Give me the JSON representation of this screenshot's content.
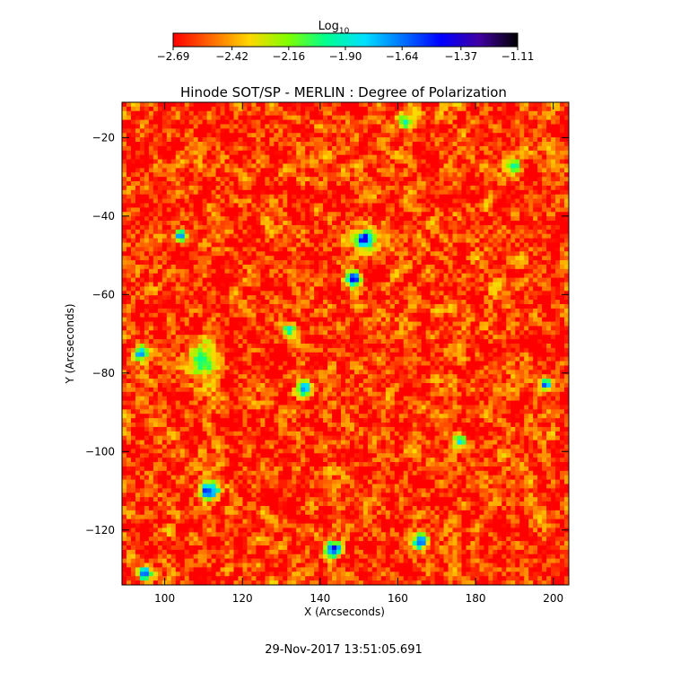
{
  "chart_data": {
    "type": "heatmap",
    "title": "Hinode SOT/SP - MERLIN : Degree of Polarization",
    "xlabel": "X (Arcseconds)",
    "ylabel": "Y (Arcseconds)",
    "xlim": [
      89,
      204
    ],
    "ylim": [
      -134,
      -11
    ],
    "xticks": [
      100,
      120,
      140,
      160,
      180,
      200
    ],
    "yticks": [
      -20,
      -40,
      -60,
      -80,
      -100,
      -120
    ],
    "xtick_labels": [
      "100",
      "120",
      "140",
      "160",
      "180",
      "200"
    ],
    "ytick_labels": [
      "−20",
      "−40",
      "−60",
      "−80",
      "−100",
      "−120"
    ],
    "colorbar": {
      "label": "Log",
      "label_sub": "10",
      "range": [
        -2.69,
        -1.11
      ],
      "tick_values": [
        -2.69,
        -2.42,
        -2.16,
        -1.9,
        -1.64,
        -1.37,
        -1.11
      ],
      "tick_labels": [
        "−2.69",
        "−2.42",
        "−2.16",
        "−1.90",
        "−1.64",
        "−1.37",
        "−1.11"
      ],
      "colormap": [
        "#ff0000",
        "#ff6a00",
        "#ffd800",
        "#80ff00",
        "#00ff90",
        "#00e0ff",
        "#0070ff",
        "#0000ff",
        "#4000a0",
        "#000000"
      ]
    },
    "background_level": -2.6,
    "features": [
      {
        "x": 151.5,
        "y": -46,
        "level": -1.2,
        "r": 2.2
      },
      {
        "x": 148.5,
        "y": -56,
        "level": -1.3,
        "r": 2.0
      },
      {
        "x": 111.5,
        "y": -110,
        "level": -1.25,
        "r": 2.5
      },
      {
        "x": 143.5,
        "y": -125,
        "level": -1.3,
        "r": 2.0
      },
      {
        "x": 94,
        "y": -75,
        "level": -1.45,
        "r": 1.8
      },
      {
        "x": 198,
        "y": -83,
        "level": -1.5,
        "r": 1.6
      },
      {
        "x": 110,
        "y": -77,
        "level": -1.85,
        "r": 4.0
      },
      {
        "x": 136,
        "y": -84,
        "level": -1.55,
        "r": 1.8
      },
      {
        "x": 104,
        "y": -45,
        "level": -1.55,
        "r": 1.4
      },
      {
        "x": 166,
        "y": -123,
        "level": -1.5,
        "r": 2.0
      },
      {
        "x": 95,
        "y": -131,
        "level": -1.45,
        "r": 1.8
      },
      {
        "x": 176,
        "y": -97,
        "level": -1.7,
        "r": 1.6
      },
      {
        "x": 132,
        "y": -69,
        "level": -1.6,
        "r": 1.5
      },
      {
        "x": 162,
        "y": -16,
        "level": -1.85,
        "r": 2.0
      },
      {
        "x": 190,
        "y": -27,
        "level": -1.9,
        "r": 1.8
      }
    ]
  },
  "timestamp": "29-Nov-2017 13:51:05.691"
}
